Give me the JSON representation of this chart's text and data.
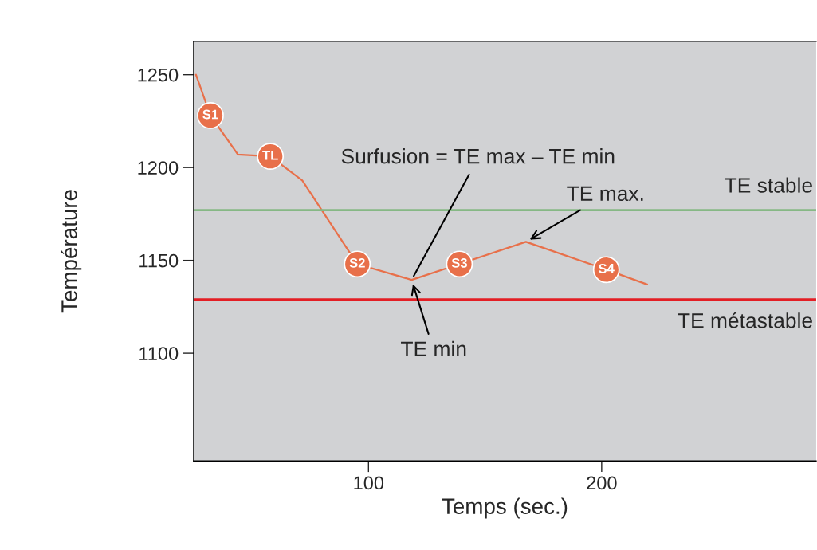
{
  "chart_data": {
    "type": "line",
    "xlabel": "Temps (sec.)",
    "ylabel": "Température",
    "xlim": [
      25,
      292
    ],
    "xticks": [
      100,
      200
    ],
    "ylim": [
      1042,
      1268
    ],
    "yticks": [
      1100,
      1150,
      1200,
      1250
    ],
    "grid": false,
    "marker": "none",
    "line_style": "solid",
    "series": [
      {
        "color": "#e8704a",
        "x": [
          26,
          32.2,
          44,
          57.9,
          71.6,
          95.2,
          118.5,
          139,
          167.5,
          202,
          219.5
        ],
        "values": [
          1250,
          1228,
          1207,
          1206,
          1193,
          1148,
          1139.5,
          1148,
          1160,
          1145,
          1137
        ]
      }
    ],
    "ref_lines": [
      {
        "axis": "y",
        "value": 1177,
        "label": "TE stable",
        "color": "#86b885"
      },
      {
        "axis": "y",
        "value": 1129,
        "label": "TE métastable",
        "color": "#e31e24"
      }
    ],
    "annotations": [
      {
        "text": "S1",
        "x": 32.2,
        "y": 1228
      },
      {
        "text": "TL",
        "x": 57.9,
        "y": 1206
      },
      {
        "text": "S2",
        "x": 95.2,
        "y": 1148
      },
      {
        "text": "S3",
        "x": 139,
        "y": 1148
      },
      {
        "text": "S4",
        "x": 202,
        "y": 1145
      },
      {
        "text": "Surfusion = TE max – TE min",
        "x": 118.5,
        "y": 1139.5
      },
      {
        "text": "TE max.",
        "x": 167.5,
        "y": 1160
      },
      {
        "text": "TE min",
        "x": 118.5,
        "y": 1139.5
      }
    ]
  }
}
